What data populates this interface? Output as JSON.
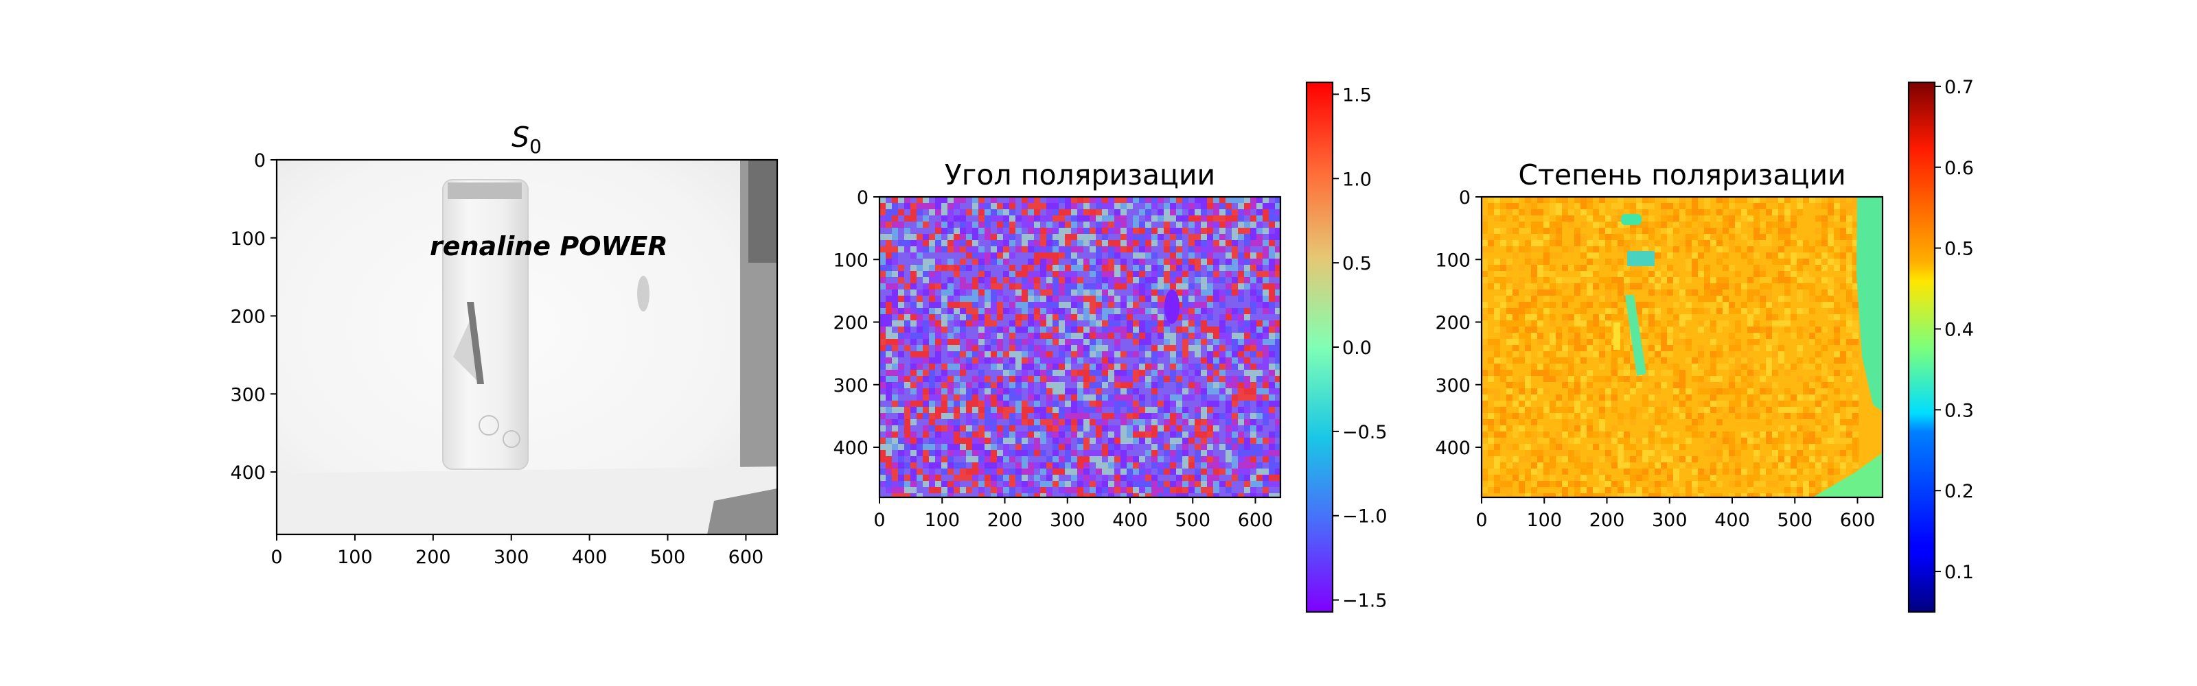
{
  "chart_data": [
    {
      "type": "heatmap",
      "title": "S",
      "title_subscript": "0",
      "colormap": "gray",
      "xlim": [
        0,
        640
      ],
      "ylim": [
        480,
        0
      ],
      "xticks": [
        0,
        100,
        200,
        300,
        400,
        500,
        600
      ],
      "yticks": [
        0,
        100,
        200,
        300,
        400
      ],
      "image_text": "renaline POWER",
      "colorbar": null
    },
    {
      "type": "heatmap",
      "title": "Угол поляризации",
      "colormap": "rainbow",
      "xlim": [
        0,
        640
      ],
      "ylim": [
        480,
        0
      ],
      "xticks": [
        0,
        100,
        200,
        300,
        400,
        500,
        600
      ],
      "yticks": [
        0,
        100,
        200,
        300,
        400
      ],
      "colorbar": {
        "range": [
          -1.5708,
          1.5708
        ],
        "ticks": [
          1.5,
          1.0,
          0.5,
          0.0,
          -0.5,
          -1.0,
          -1.5
        ],
        "tick_labels": [
          "1.5",
          "1.0",
          "0.5",
          "0.0",
          "−0.5",
          "−1.0",
          "−1.5"
        ]
      }
    },
    {
      "type": "heatmap",
      "title": "Степень поляризации",
      "colormap": "jet",
      "xlim": [
        0,
        640
      ],
      "ylim": [
        480,
        0
      ],
      "xticks": [
        0,
        100,
        200,
        300,
        400,
        500,
        600
      ],
      "yticks": [
        0,
        100,
        200,
        300,
        400
      ],
      "colorbar": {
        "range": [
          0.05,
          0.705
        ],
        "ticks": [
          0.7,
          0.6,
          0.5,
          0.4,
          0.3,
          0.2,
          0.1
        ],
        "tick_labels": [
          "0.7",
          "0.6",
          "0.5",
          "0.4",
          "0.3",
          "0.2",
          "0.1"
        ]
      }
    }
  ]
}
